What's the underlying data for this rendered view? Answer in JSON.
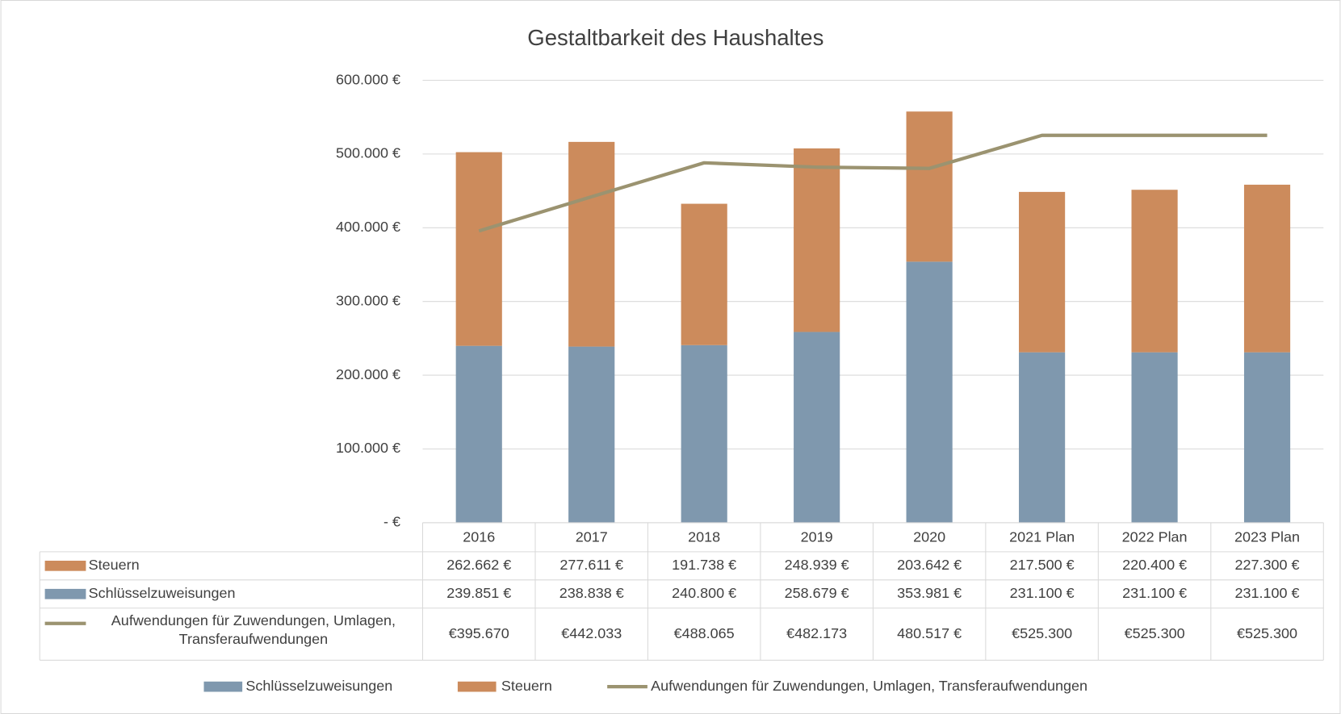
{
  "chart_data": {
    "type": "bar",
    "title": "Gestaltbarkeit des Haushaltes",
    "categories": [
      "2016",
      "2017",
      "2018",
      "2019",
      "2020",
      "2021 Plan",
      "2022 Plan",
      "2023 Plan"
    ],
    "series": [
      {
        "name": "Schlüsselzuweisungen",
        "type": "bar",
        "color": "#7f98ae",
        "values": [
          239851,
          238838,
          240800,
          258679,
          353981,
          231100,
          231100,
          231100
        ],
        "value_labels": [
          "239.851 €",
          "238.838 €",
          "240.800 €",
          "258.679 €",
          "353.981 €",
          "231.100 €",
          "231.100 €",
          "231.100 €"
        ]
      },
      {
        "name": "Steuern",
        "type": "bar",
        "color": "#cc8b5c",
        "values": [
          262662,
          277611,
          191738,
          248939,
          203642,
          217500,
          220400,
          227300
        ],
        "value_labels": [
          "262.662 €",
          "277.611 €",
          "191.738 €",
          "248.939 €",
          "203.642 €",
          "217.500 €",
          "220.400 €",
          "227.300 €"
        ]
      },
      {
        "name": "Aufwendungen für Zuwendungen, Umlagen, Transferaufwendungen",
        "type": "line",
        "color": "#9b9370",
        "values": [
          395670,
          442033,
          488065,
          482173,
          480517,
          525300,
          525300,
          525300
        ],
        "value_labels": [
          "€395.670",
          "€442.033",
          "€488.065",
          "€482.173",
          "480.517 €",
          "€525.300",
          "€525.300",
          "€525.300"
        ]
      }
    ],
    "ylim": [
      0,
      600000
    ],
    "yticks": [
      {
        "value": 0,
        "label": "-   €"
      },
      {
        "value": 100000,
        "label": "100.000 €"
      },
      {
        "value": 200000,
        "label": "200.000 €"
      },
      {
        "value": 300000,
        "label": "300.000 €"
      },
      {
        "value": 400000,
        "label": "400.000 €"
      },
      {
        "value": 500000,
        "label": "500.000 €"
      },
      {
        "value": 600000,
        "label": "600.000 €"
      }
    ],
    "grid": true,
    "legend": "bottom"
  }
}
